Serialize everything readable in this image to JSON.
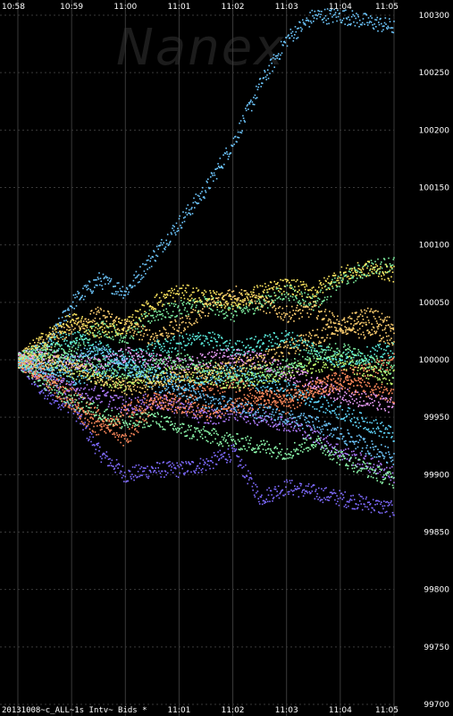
{
  "watermark": "Nanex",
  "footer_label": "20131008~c_ALL~1s Intv~ Bids *",
  "chart_data": {
    "type": "scatter",
    "x_ticks_top": [
      "10:58",
      "10:59",
      "11:00",
      "11:01",
      "11:02",
      "11:03",
      "11:04",
      "11:05"
    ],
    "x_ticks_bottom": [
      "11:01",
      "11:02",
      "11:03",
      "11:04",
      "11:05"
    ],
    "x_range_minutes": [
      0,
      7
    ],
    "y_ticks": [
      100300,
      100250,
      100200,
      100150,
      100100,
      100050,
      100000,
      99950,
      99900,
      99850,
      99800,
      99750,
      99700
    ],
    "ylim": [
      99700,
      100300
    ],
    "grid": "vertical solid, horizontal dotted",
    "colors": [
      "#7f6bff",
      "#6ec8ff",
      "#7ff0a0",
      "#ffd070",
      "#ff8a5c",
      "#c8ff70",
      "#5cf0e0",
      "#b07cff",
      "#ffe860",
      "#60d8ff",
      "#f0a0ff",
      "#90ffb0"
    ],
    "series": [
      {
        "color_index": 0,
        "points": [
          [
            0,
            100000
          ],
          [
            0.5,
            99970
          ],
          [
            1,
            99960
          ],
          [
            1.5,
            99920
          ],
          [
            2,
            99900
          ],
          [
            2.5,
            99905
          ],
          [
            3,
            99905
          ],
          [
            3.5,
            99910
          ],
          [
            4,
            99920
          ],
          [
            4.5,
            99880
          ],
          [
            5,
            99890
          ],
          [
            5.5,
            99885
          ],
          [
            6,
            99880
          ],
          [
            6.5,
            99875
          ],
          [
            7,
            99870
          ]
        ]
      },
      {
        "color_index": 1,
        "points": [
          [
            0,
            100000
          ],
          [
            0.5,
            100010
          ],
          [
            1,
            100050
          ],
          [
            1.5,
            100070
          ],
          [
            2,
            100060
          ],
          [
            2.5,
            100090
          ],
          [
            3,
            100120
          ],
          [
            3.5,
            100150
          ],
          [
            4,
            100190
          ],
          [
            4.5,
            100240
          ],
          [
            5,
            100280
          ],
          [
            5.5,
            100300
          ],
          [
            6,
            100300
          ],
          [
            6.5,
            100295
          ],
          [
            7,
            100290
          ]
        ]
      },
      {
        "color_index": 2,
        "points": [
          [
            0,
            100000
          ],
          [
            0.5,
            99990
          ],
          [
            1,
            100010
          ],
          [
            1.5,
            100030
          ],
          [
            2,
            100020
          ],
          [
            2.5,
            100040
          ],
          [
            3,
            100045
          ],
          [
            3.5,
            100050
          ],
          [
            4,
            100040
          ],
          [
            4.5,
            100050
          ],
          [
            5,
            100060
          ],
          [
            5.5,
            100050
          ],
          [
            6,
            100070
          ],
          [
            6.5,
            100080
          ],
          [
            7,
            100085
          ]
        ]
      },
      {
        "color_index": 3,
        "points": [
          [
            0,
            100000
          ],
          [
            0.5,
            100015
          ],
          [
            1,
            100030
          ],
          [
            1.5,
            100040
          ],
          [
            2,
            100030
          ],
          [
            2.5,
            100020
          ],
          [
            3,
            100030
          ],
          [
            3.5,
            100045
          ],
          [
            4,
            100060
          ],
          [
            4.5,
            100050
          ],
          [
            5,
            100040
          ],
          [
            5.5,
            100045
          ],
          [
            6,
            100030
          ],
          [
            6.5,
            100040
          ],
          [
            7,
            100030
          ]
        ]
      },
      {
        "color_index": 4,
        "points": [
          [
            0,
            100000
          ],
          [
            0.5,
            99990
          ],
          [
            1,
            99970
          ],
          [
            1.5,
            99950
          ],
          [
            2,
            99930
          ],
          [
            2.5,
            99960
          ],
          [
            3,
            99970
          ],
          [
            3.5,
            99975
          ],
          [
            4,
            99980
          ],
          [
            4.5,
            99970
          ],
          [
            5,
            99960
          ],
          [
            5.5,
            99975
          ],
          [
            6,
            99985
          ],
          [
            6.5,
            99990
          ],
          [
            7,
            100000
          ]
        ]
      },
      {
        "color_index": 5,
        "points": [
          [
            0,
            100000
          ],
          [
            0.5,
            100005
          ],
          [
            1,
            99990
          ],
          [
            1.5,
            99985
          ],
          [
            2,
            99980
          ],
          [
            2.5,
            99985
          ],
          [
            3,
            99990
          ],
          [
            3.5,
            99985
          ],
          [
            4,
            99980
          ],
          [
            4.5,
            99985
          ],
          [
            5,
            99990
          ],
          [
            5.5,
            99995
          ],
          [
            6,
            100000
          ],
          [
            6.5,
            99990
          ],
          [
            7,
            99985
          ]
        ]
      },
      {
        "color_index": 6,
        "points": [
          [
            0,
            100000
          ],
          [
            0.5,
            100010
          ],
          [
            1,
            100020
          ],
          [
            1.5,
            100010
          ],
          [
            2,
            100000
          ],
          [
            2.5,
            100010
          ],
          [
            3,
            100015
          ],
          [
            3.5,
            100020
          ],
          [
            4,
            100010
          ],
          [
            4.5,
            100015
          ],
          [
            5,
            100020
          ],
          [
            5.5,
            100010
          ],
          [
            6,
            100000
          ],
          [
            6.5,
            100005
          ],
          [
            7,
            100010
          ]
        ]
      },
      {
        "color_index": 7,
        "points": [
          [
            0,
            100000
          ],
          [
            0.5,
            99985
          ],
          [
            1,
            99975
          ],
          [
            1.5,
            99970
          ],
          [
            2,
            99960
          ],
          [
            2.5,
            99965
          ],
          [
            3,
            99960
          ],
          [
            3.5,
            99950
          ],
          [
            4,
            99955
          ],
          [
            4.5,
            99950
          ],
          [
            5,
            99945
          ],
          [
            5.5,
            99935
          ],
          [
            6,
            99920
          ],
          [
            6.5,
            99910
          ],
          [
            7,
            99900
          ]
        ]
      },
      {
        "color_index": 8,
        "points": [
          [
            0,
            100000
          ],
          [
            0.5,
            100020
          ],
          [
            1,
            100035
          ],
          [
            1.5,
            100025
          ],
          [
            2,
            100030
          ],
          [
            2.5,
            100050
          ],
          [
            3,
            100060
          ],
          [
            3.5,
            100055
          ],
          [
            4,
            100050
          ],
          [
            4.5,
            100060
          ],
          [
            5,
            100065
          ],
          [
            5.5,
            100060
          ],
          [
            6,
            100075
          ],
          [
            6.5,
            100080
          ],
          [
            7,
            100075
          ]
        ]
      },
      {
        "color_index": 9,
        "points": [
          [
            0,
            100000
          ],
          [
            0.5,
            99995
          ],
          [
            1,
            99985
          ],
          [
            1.5,
            99990
          ],
          [
            2,
            99995
          ],
          [
            2.5,
            99990
          ],
          [
            3,
            99980
          ],
          [
            3.5,
            99985
          ],
          [
            4,
            99990
          ],
          [
            4.5,
            99980
          ],
          [
            5,
            99975
          ],
          [
            5.5,
            99965
          ],
          [
            6,
            99955
          ],
          [
            6.5,
            99945
          ],
          [
            7,
            99935
          ]
        ]
      },
      {
        "color_index": 10,
        "points": [
          [
            0,
            100000
          ],
          [
            0.5,
            100005
          ],
          [
            1,
            100000
          ],
          [
            1.5,
            99995
          ],
          [
            2,
            100005
          ],
          [
            2.5,
            100000
          ],
          [
            3,
            99995
          ],
          [
            3.5,
            100000
          ],
          [
            4,
            100005
          ],
          [
            4.5,
            100000
          ],
          [
            5,
            99990
          ],
          [
            5.5,
            99980
          ],
          [
            6,
            99970
          ],
          [
            6.5,
            99965
          ],
          [
            7,
            99960
          ]
        ]
      },
      {
        "color_index": 11,
        "points": [
          [
            0,
            100000
          ],
          [
            0.5,
            99980
          ],
          [
            1,
            99965
          ],
          [
            1.5,
            99955
          ],
          [
            2,
            99945
          ],
          [
            2.5,
            99950
          ],
          [
            3,
            99940
          ],
          [
            3.5,
            99935
          ],
          [
            4,
            99930
          ],
          [
            4.5,
            99925
          ],
          [
            5,
            99920
          ],
          [
            5.5,
            99930
          ],
          [
            6,
            99915
          ],
          [
            6.5,
            99905
          ],
          [
            7,
            99895
          ]
        ]
      },
      {
        "color_index": 2,
        "points": [
          [
            0,
            100000
          ],
          [
            0.5,
            100010
          ],
          [
            1,
            100005
          ],
          [
            1.5,
            99995
          ],
          [
            2,
            99990
          ],
          [
            2.5,
            99995
          ],
          [
            3,
            100000
          ],
          [
            3.5,
            99995
          ],
          [
            4,
            99985
          ],
          [
            4.5,
            99990
          ],
          [
            5,
            99995
          ],
          [
            5.5,
            100005
          ],
          [
            6,
            100010
          ],
          [
            6.5,
            100000
          ],
          [
            7,
            99990
          ]
        ]
      },
      {
        "color_index": 1,
        "points": [
          [
            0,
            100000
          ],
          [
            0.5,
            99990
          ],
          [
            1,
            100000
          ],
          [
            1.5,
            100010
          ],
          [
            2,
            99995
          ],
          [
            2.5,
            99980
          ],
          [
            3,
            99975
          ],
          [
            3.5,
            99965
          ],
          [
            4,
            99960
          ],
          [
            4.5,
            99955
          ],
          [
            5,
            99950
          ],
          [
            5.5,
            99945
          ],
          [
            6,
            99935
          ],
          [
            6.5,
            99925
          ],
          [
            7,
            99915
          ]
        ]
      },
      {
        "color_index": 3,
        "points": [
          [
            0,
            100000
          ],
          [
            0.5,
            100000
          ],
          [
            1,
            99995
          ],
          [
            1.5,
            99985
          ],
          [
            2,
            99975
          ],
          [
            2.5,
            99980
          ],
          [
            3,
            99985
          ],
          [
            3.5,
            99990
          ],
          [
            4,
            99995
          ],
          [
            4.5,
            100000
          ],
          [
            5,
            100010
          ],
          [
            5.5,
            100020
          ],
          [
            6,
            100030
          ],
          [
            6.5,
            100025
          ],
          [
            7,
            100020
          ]
        ]
      },
      {
        "color_index": 4,
        "points": [
          [
            0,
            100000
          ],
          [
            0.5,
            99985
          ],
          [
            1,
            99960
          ],
          [
            1.5,
            99940
          ],
          [
            2,
            99955
          ],
          [
            2.5,
            99965
          ],
          [
            3,
            99960
          ],
          [
            3.5,
            99955
          ],
          [
            4,
            99960
          ],
          [
            4.5,
            99965
          ],
          [
            5,
            99970
          ],
          [
            5.5,
            99975
          ],
          [
            6,
            99980
          ],
          [
            6.5,
            99975
          ],
          [
            7,
            99970
          ]
        ]
      }
    ]
  }
}
